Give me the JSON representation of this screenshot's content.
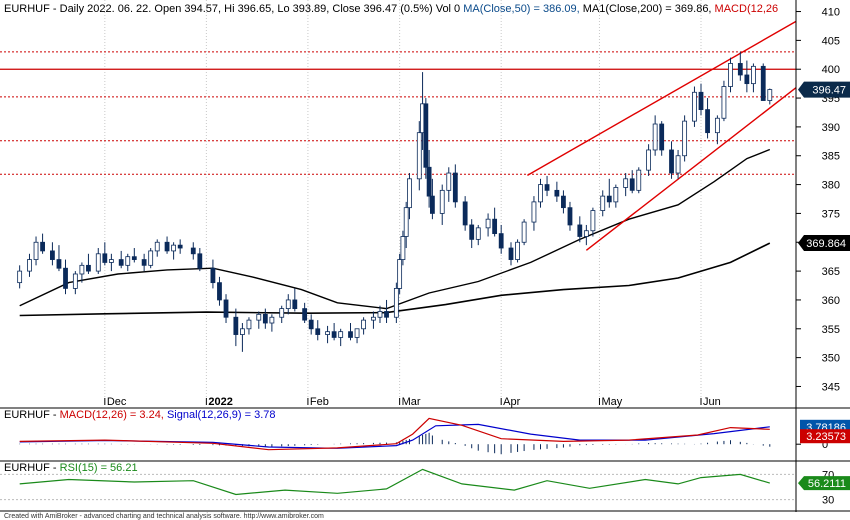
{
  "header": {
    "symbol": "EURHUF",
    "text": " - Daily 2022. 06. 22. Open 394.57, Hi 396.65, Lo 393.89, Close 396.47 (0.5%) Vol 0 ",
    "ma50": "MA(Close,50) = 386.09,",
    "ma200": " MA1(Close,200) = 369.86,",
    "macd": " MACD(12,26"
  },
  "colors": {
    "up": "#ffffff",
    "down": "#0b2a5a",
    "ma": "#000000",
    "resistance": "#cc0000",
    "channel": "#e00000",
    "macd": "#cc0000",
    "signal": "#0000cc",
    "rsi": "#1a8a1a",
    "last_tag": "#0b2a4a",
    "macd_tag": "#0055aa",
    "signal_tag": "#cc0000"
  },
  "price_axis": {
    "ticks": [
      "410",
      "405",
      "400",
      "395",
      "390",
      "385",
      "380",
      "375",
      "370",
      "365",
      "360",
      "355",
      "350",
      "345"
    ]
  },
  "price_tags": {
    "last": "396.47",
    "ma200": "369.864"
  },
  "x_axis": {
    "labels": [
      "Dec",
      "2022",
      "Feb",
      "Mar",
      "Apr",
      "May",
      "Jun"
    ]
  },
  "macd_panel": {
    "symbol": "EURHUF",
    "macd_label": "MACD(12,26) = 3.24,",
    "signal_label": "Signal(12,26,9) = 3.78",
    "tag_signal": "3.78186",
    "tag_macd": "3.23573",
    "ticks": [
      "0"
    ]
  },
  "rsi_panel": {
    "symbol": "EURHUF",
    "rsi_label": "RSI(15) = 56.21",
    "tag": "56.2111",
    "ticks": [
      "70",
      "30"
    ]
  },
  "footer": {
    "credit": "Created with AmiBroker - advanced charting and technical analysis software. http://www.amibroker.com"
  },
  "chart_data": {
    "type": "candlestick",
    "title": "EURHUF - Daily 2022. 06. 22.",
    "ylim": [
      343,
      412
    ],
    "horizontal_levels": {
      "solid": [
        400
      ],
      "dotted": [
        403,
        395.2,
        387.6,
        381.8
      ]
    },
    "channel": {
      "upper": [
        [
          "2022-04-09",
          381.6
        ],
        [
          "2022-06-30",
          408.3
        ]
      ],
      "lower": [
        [
          "2022-04-27",
          368.6
        ],
        [
          "2022-06-30",
          396.8
        ]
      ]
    },
    "ma50": [
      [
        "2021-11-05",
        359
      ],
      [
        "2021-11-20",
        363
      ],
      [
        "2021-12-05",
        364.5
      ],
      [
        "2021-12-20",
        365.2
      ],
      [
        "2022-01-03",
        365.5
      ],
      [
        "2022-01-15",
        364
      ],
      [
        "2022-01-30",
        361.8
      ],
      [
        "2022-02-10",
        359.5
      ],
      [
        "2022-02-25",
        358.5
      ],
      [
        "2022-03-10",
        361.2
      ],
      [
        "2022-03-25",
        363.2
      ],
      [
        "2022-04-10",
        366.5
      ],
      [
        "2022-04-25",
        370.5
      ],
      [
        "2022-05-10",
        374
      ],
      [
        "2022-05-25",
        376.5
      ],
      [
        "2022-06-05",
        380.5
      ],
      [
        "2022-06-15",
        384.5
      ],
      [
        "2022-06-22",
        386.09
      ]
    ],
    "ma200": [
      [
        "2021-11-05",
        357.3
      ],
      [
        "2021-12-01",
        357.6
      ],
      [
        "2022-01-01",
        357.9
      ],
      [
        "2022-02-01",
        357.7
      ],
      [
        "2022-02-25",
        357.8
      ],
      [
        "2022-03-15",
        359.2
      ],
      [
        "2022-04-01",
        360.8
      ],
      [
        "2022-04-20",
        361.8
      ],
      [
        "2022-05-10",
        362.5
      ],
      [
        "2022-05-25",
        363.8
      ],
      [
        "2022-06-10",
        366.5
      ],
      [
        "2022-06-22",
        369.86
      ]
    ],
    "candles": [
      [
        "2021-11-05",
        363,
        366,
        362,
        365
      ],
      [
        "2021-11-08",
        365,
        368,
        364,
        367
      ],
      [
        "2021-11-10",
        367,
        371,
        366,
        370
      ],
      [
        "2021-11-12",
        370,
        371.5,
        368,
        368.5
      ],
      [
        "2021-11-15",
        368.5,
        370,
        366,
        367
      ],
      [
        "2021-11-17",
        367,
        369.5,
        365,
        365.5
      ],
      [
        "2021-11-19",
        365.5,
        367,
        361,
        362
      ],
      [
        "2021-11-22",
        362,
        365,
        361,
        364.5
      ],
      [
        "2021-11-24",
        364.5,
        366.5,
        363,
        366
      ],
      [
        "2021-11-26",
        366,
        368,
        364.5,
        365
      ],
      [
        "2021-11-29",
        365,
        369,
        364.5,
        368
      ],
      [
        "2021-12-01",
        368,
        370,
        366,
        366.5
      ],
      [
        "2021-12-03",
        366.5,
        368,
        365,
        367
      ],
      [
        "2021-12-06",
        367,
        368.5,
        365.5,
        366
      ],
      [
        "2021-12-08",
        366,
        368,
        365,
        367.5
      ],
      [
        "2021-12-10",
        367.5,
        369,
        366.5,
        367
      ],
      [
        "2021-12-13",
        367,
        368,
        365,
        366
      ],
      [
        "2021-12-15",
        366,
        369,
        365.5,
        368.5
      ],
      [
        "2021-12-17",
        368.5,
        370.5,
        367.5,
        370
      ],
      [
        "2021-12-20",
        370,
        371,
        368,
        368.5
      ],
      [
        "2021-12-22",
        368.5,
        370,
        367,
        369.5
      ],
      [
        "2021-12-24",
        369.5,
        370.5,
        368,
        369
      ],
      [
        "2021-12-28",
        369,
        370,
        367,
        368
      ],
      [
        "2021-12-30",
        368,
        369,
        365,
        365.5
      ],
      [
        "2022-01-03",
        365.5,
        367,
        362,
        363
      ],
      [
        "2022-01-05",
        363,
        364,
        359,
        360
      ],
      [
        "2022-01-07",
        360,
        361,
        356,
        357
      ],
      [
        "2022-01-10",
        357,
        358.5,
        352,
        354
      ],
      [
        "2022-01-12",
        354,
        356,
        351,
        355
      ],
      [
        "2022-01-14",
        355,
        357,
        354,
        356.5
      ],
      [
        "2022-01-17",
        356.5,
        358,
        355,
        357.5
      ],
      [
        "2022-01-19",
        357.5,
        358.5,
        355,
        356
      ],
      [
        "2022-01-21",
        356,
        357.5,
        354.5,
        357
      ],
      [
        "2022-01-24",
        357,
        359,
        356,
        358.5
      ],
      [
        "2022-01-26",
        358.5,
        361,
        357.5,
        360
      ],
      [
        "2022-01-28",
        360,
        362,
        358,
        358.5
      ],
      [
        "2022-01-31",
        358.5,
        359.5,
        356,
        356.5
      ],
      [
        "2022-02-02",
        356.5,
        357.5,
        354,
        355
      ],
      [
        "2022-02-04",
        355,
        356.5,
        353,
        354
      ],
      [
        "2022-02-07",
        354,
        355.5,
        352.5,
        354.5
      ],
      [
        "2022-02-09",
        354.5,
        356,
        353,
        353.5
      ],
      [
        "2022-02-11",
        353.5,
        355,
        352,
        354.5
      ],
      [
        "2022-02-14",
        354.5,
        356,
        353,
        353.5
      ],
      [
        "2022-02-16",
        353.5,
        355,
        352.5,
        355
      ],
      [
        "2022-02-18",
        355,
        357,
        354,
        356.5
      ],
      [
        "2022-02-21",
        356.5,
        358,
        355,
        357
      ],
      [
        "2022-02-23",
        357,
        359,
        356,
        358
      ],
      [
        "2022-02-25",
        358,
        360,
        356,
        357
      ],
      [
        "2022-02-28",
        357,
        363,
        356,
        362
      ],
      [
        "2022-03-01",
        362,
        368,
        361,
        367
      ],
      [
        "2022-03-02",
        367,
        372,
        366,
        371
      ],
      [
        "2022-03-03",
        371,
        377,
        369,
        376
      ],
      [
        "2022-03-04",
        376,
        382,
        374,
        381
      ],
      [
        "2022-03-07",
        381,
        391,
        379,
        389
      ],
      [
        "2022-03-08",
        389,
        399.5,
        386,
        394
      ],
      [
        "2022-03-09",
        394,
        395,
        381,
        383
      ],
      [
        "2022-03-10",
        383,
        386,
        376,
        378
      ],
      [
        "2022-03-11",
        378,
        381,
        374,
        375
      ],
      [
        "2022-03-14",
        375,
        380,
        373,
        379
      ],
      [
        "2022-03-16",
        379,
        383,
        377,
        382
      ],
      [
        "2022-03-18",
        382,
        383.5,
        376,
        377
      ],
      [
        "2022-03-21",
        377,
        378,
        372,
        373
      ],
      [
        "2022-03-23",
        373,
        374,
        369,
        370.5
      ],
      [
        "2022-03-25",
        370.5,
        373,
        369.5,
        372.5
      ],
      [
        "2022-03-28",
        372.5,
        375,
        371,
        374
      ],
      [
        "2022-03-30",
        374,
        376,
        371,
        371.5
      ],
      [
        "2022-04-01",
        371.5,
        373,
        368,
        369
      ],
      [
        "2022-04-04",
        369,
        370,
        366,
        367
      ],
      [
        "2022-04-06",
        367,
        370.5,
        366.5,
        370
      ],
      [
        "2022-04-08",
        370,
        374,
        369.5,
        373.5
      ],
      [
        "2022-04-11",
        373.5,
        378,
        372,
        377
      ],
      [
        "2022-04-13",
        377,
        381,
        376,
        380
      ],
      [
        "2022-04-15",
        380,
        381.5,
        378,
        379
      ],
      [
        "2022-04-18",
        379,
        380.5,
        377,
        378
      ],
      [
        "2022-04-20",
        378,
        379,
        375,
        376
      ],
      [
        "2022-04-22",
        376,
        377,
        372,
        373
      ],
      [
        "2022-04-25",
        373,
        374.5,
        370,
        371
      ],
      [
        "2022-04-27",
        371,
        373,
        369.5,
        372
      ],
      [
        "2022-04-29",
        372,
        376,
        371,
        375.5
      ],
      [
        "2022-05-02",
        375.5,
        379,
        374.5,
        378
      ],
      [
        "2022-05-04",
        378,
        381,
        376,
        377
      ],
      [
        "2022-05-06",
        377,
        380,
        376,
        379.5
      ],
      [
        "2022-05-09",
        379.5,
        382,
        378,
        381
      ],
      [
        "2022-05-11",
        381,
        382.5,
        378.5,
        379
      ],
      [
        "2022-05-13",
        379,
        383,
        378.5,
        382.5
      ],
      [
        "2022-05-16",
        382.5,
        387,
        381.5,
        386
      ],
      [
        "2022-05-18",
        386,
        392,
        385,
        390.5
      ],
      [
        "2022-05-20",
        390.5,
        391,
        385,
        386
      ],
      [
        "2022-05-23",
        386,
        387.5,
        381,
        382
      ],
      [
        "2022-05-25",
        382,
        386,
        381,
        385
      ],
      [
        "2022-05-27",
        385,
        392,
        384,
        391
      ],
      [
        "2022-05-30",
        391,
        397,
        390,
        396
      ],
      [
        "2022-06-01",
        396,
        397.5,
        392,
        393
      ],
      [
        "2022-06-03",
        393,
        395,
        388,
        389
      ],
      [
        "2022-06-06",
        389,
        392,
        387,
        391.5
      ],
      [
        "2022-06-08",
        391.5,
        398,
        391,
        397
      ],
      [
        "2022-06-10",
        397,
        402,
        396,
        401
      ],
      [
        "2022-06-13",
        401,
        403,
        398,
        399
      ],
      [
        "2022-06-15",
        399,
        401.5,
        396,
        397.5
      ],
      [
        "2022-06-17",
        397.5,
        401,
        396,
        400.5
      ],
      [
        "2022-06-20",
        400.5,
        401,
        395,
        394.57
      ],
      [
        "2022-06-22",
        394.57,
        396.65,
        393.89,
        396.47
      ]
    ],
    "macd_series": [
      [
        "2021-11-05",
        0.6
      ],
      [
        "2021-12-01",
        0.9
      ],
      [
        "2022-01-03",
        0.2
      ],
      [
        "2022-01-20",
        -1.2
      ],
      [
        "2022-02-10",
        -0.8
      ],
      [
        "2022-02-28",
        0.1
      ],
      [
        "2022-03-05",
        2.2
      ],
      [
        "2022-03-10",
        5.6
      ],
      [
        "2022-03-20",
        4.1
      ],
      [
        "2022-04-01",
        1.2
      ],
      [
        "2022-04-20",
        0.6
      ],
      [
        "2022-05-10",
        0.9
      ],
      [
        "2022-05-31",
        2.0
      ],
      [
        "2022-06-10",
        3.6
      ],
      [
        "2022-06-22",
        3.24
      ]
    ],
    "signal_series": [
      [
        "2021-11-05",
        0.5
      ],
      [
        "2021-12-01",
        0.8
      ],
      [
        "2022-01-03",
        0.4
      ],
      [
        "2022-01-20",
        -0.6
      ],
      [
        "2022-02-10",
        -0.9
      ],
      [
        "2022-02-28",
        -0.3
      ],
      [
        "2022-03-05",
        0.9
      ],
      [
        "2022-03-12",
        4.0
      ],
      [
        "2022-03-25",
        4.3
      ],
      [
        "2022-04-10",
        2.2
      ],
      [
        "2022-04-25",
        0.9
      ],
      [
        "2022-05-15",
        0.9
      ],
      [
        "2022-06-05",
        2.3
      ],
      [
        "2022-06-22",
        3.78
      ]
    ],
    "rsi_series": [
      [
        "2021-11-05",
        55
      ],
      [
        "2021-11-20",
        62
      ],
      [
        "2021-12-10",
        58
      ],
      [
        "2021-12-28",
        60
      ],
      [
        "2022-01-10",
        38
      ],
      [
        "2022-01-25",
        45
      ],
      [
        "2022-02-10",
        40
      ],
      [
        "2022-02-25",
        47
      ],
      [
        "2022-03-08",
        78
      ],
      [
        "2022-03-20",
        55
      ],
      [
        "2022-04-05",
        45
      ],
      [
        "2022-04-15",
        60
      ],
      [
        "2022-04-28",
        48
      ],
      [
        "2022-05-15",
        62
      ],
      [
        "2022-05-25",
        55
      ],
      [
        "2022-06-01",
        65
      ],
      [
        "2022-06-13",
        70
      ],
      [
        "2022-06-22",
        56.21
      ]
    ]
  }
}
